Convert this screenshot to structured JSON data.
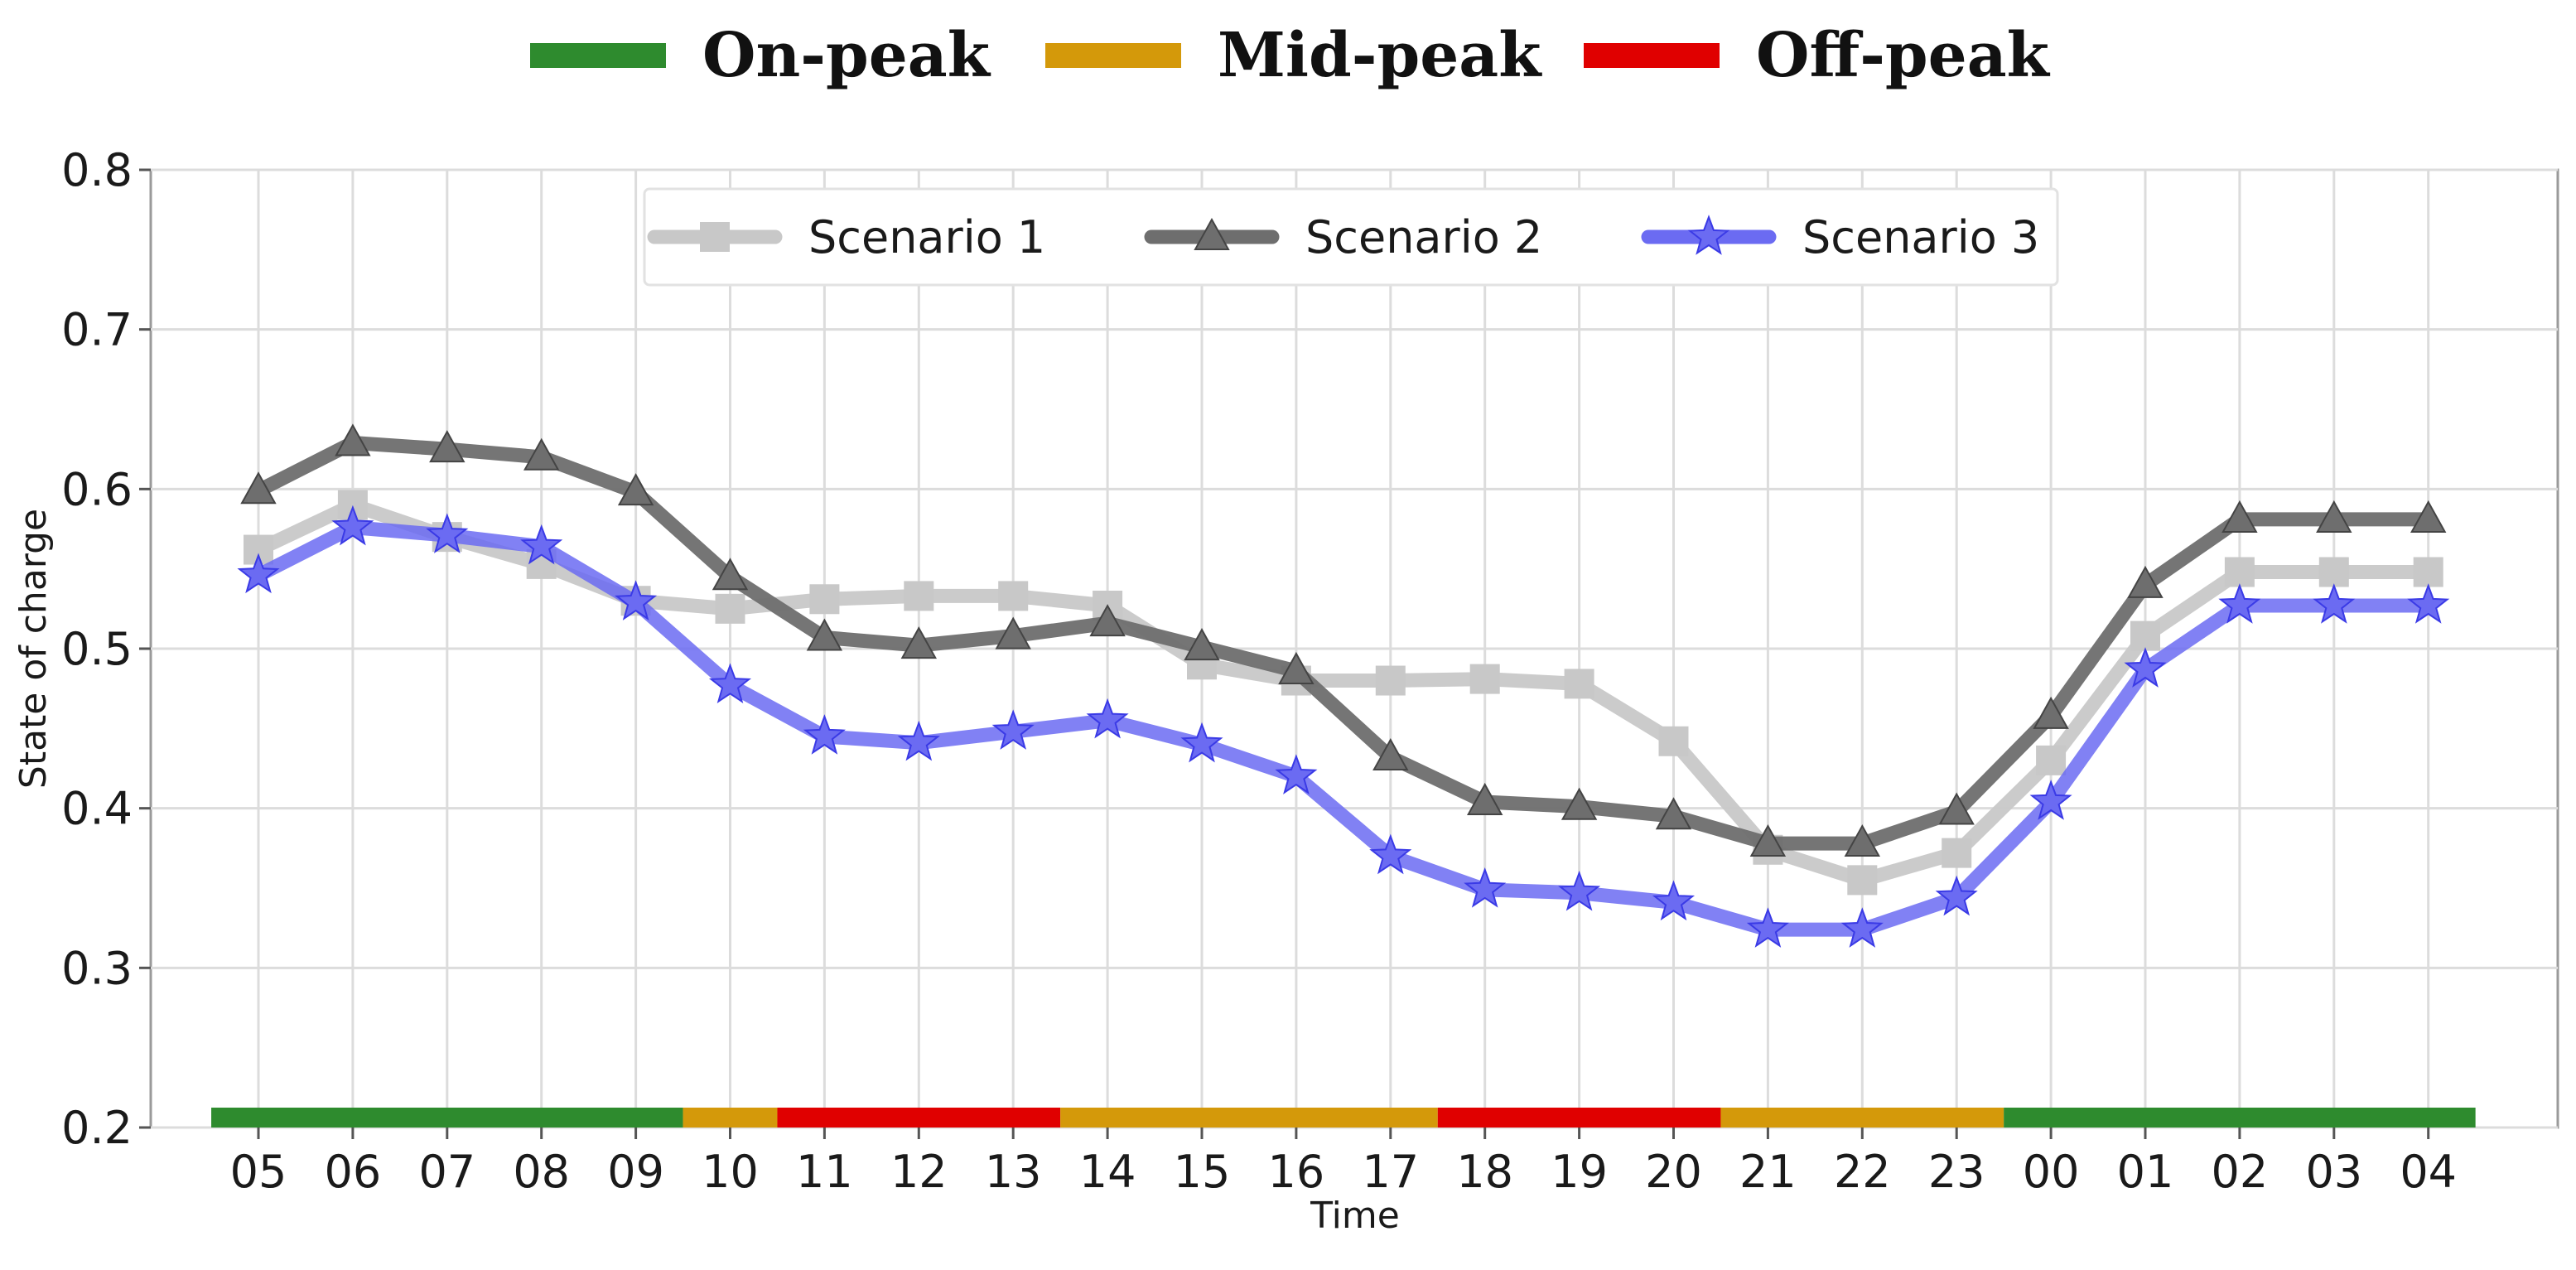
{
  "chart_data": {
    "type": "line",
    "title": "",
    "xlabel": "Time",
    "ylabel": "State of charge",
    "ylim": [
      0.2,
      0.8
    ],
    "yticks": [
      "0.2",
      "0.3",
      "0.4",
      "0.5",
      "0.6",
      "0.7",
      "0.8"
    ],
    "grid": true,
    "legend_position": "top-center",
    "categories": [
      "05",
      "06",
      "07",
      "08",
      "09",
      "10",
      "11",
      "12",
      "13",
      "14",
      "15",
      "16",
      "17",
      "18",
      "19",
      "20",
      "21",
      "22",
      "23",
      "00",
      "01",
      "02",
      "03",
      "04"
    ],
    "series": [
      {
        "name": "Scenario 1",
        "color": "#c8c8c8",
        "marker": "square",
        "values": [
          0.562,
          0.59,
          0.57,
          0.553,
          0.53,
          0.525,
          0.531,
          0.533,
          0.533,
          0.527,
          0.49,
          0.48,
          0.48,
          0.481,
          0.478,
          0.442,
          0.374,
          0.355,
          0.372,
          0.43,
          0.508,
          0.548,
          0.548,
          0.548
        ]
      },
      {
        "name": "Scenario 2",
        "color": "#6e6e6e",
        "marker": "triangle",
        "values": [
          0.599,
          0.629,
          0.625,
          0.62,
          0.598,
          0.545,
          0.507,
          0.502,
          0.508,
          0.516,
          0.501,
          0.486,
          0.432,
          0.404,
          0.401,
          0.395,
          0.378,
          0.378,
          0.398,
          0.458,
          0.54,
          0.581,
          0.581,
          0.581
        ]
      },
      {
        "name": "Scenario 3",
        "color": "#6b6bf2",
        "marker": "star",
        "values": [
          0.546,
          0.576,
          0.571,
          0.564,
          0.529,
          0.477,
          0.445,
          0.441,
          0.448,
          0.455,
          0.44,
          0.42,
          0.37,
          0.349,
          0.347,
          0.341,
          0.324,
          0.324,
          0.344,
          0.404,
          0.487,
          0.527,
          0.527,
          0.527
        ]
      }
    ],
    "period_legend": [
      {
        "name": "On-peak",
        "color": "#2e8b2e"
      },
      {
        "name": "Mid-peak",
        "color": "#d4990a"
      },
      {
        "name": "Off-peak",
        "color": "#e00000"
      }
    ],
    "period_bar": [
      {
        "period": "On-peak",
        "from": "05",
        "to": "09"
      },
      {
        "period": "Mid-peak",
        "from": "10",
        "to": "10"
      },
      {
        "period": "Off-peak",
        "from": "11",
        "to": "13"
      },
      {
        "period": "Mid-peak",
        "from": "14",
        "to": "17"
      },
      {
        "period": "Off-peak",
        "from": "18",
        "to": "20"
      },
      {
        "period": "Mid-peak",
        "from": "21",
        "to": "23"
      },
      {
        "period": "On-peak",
        "from": "00",
        "to": "04"
      }
    ]
  }
}
